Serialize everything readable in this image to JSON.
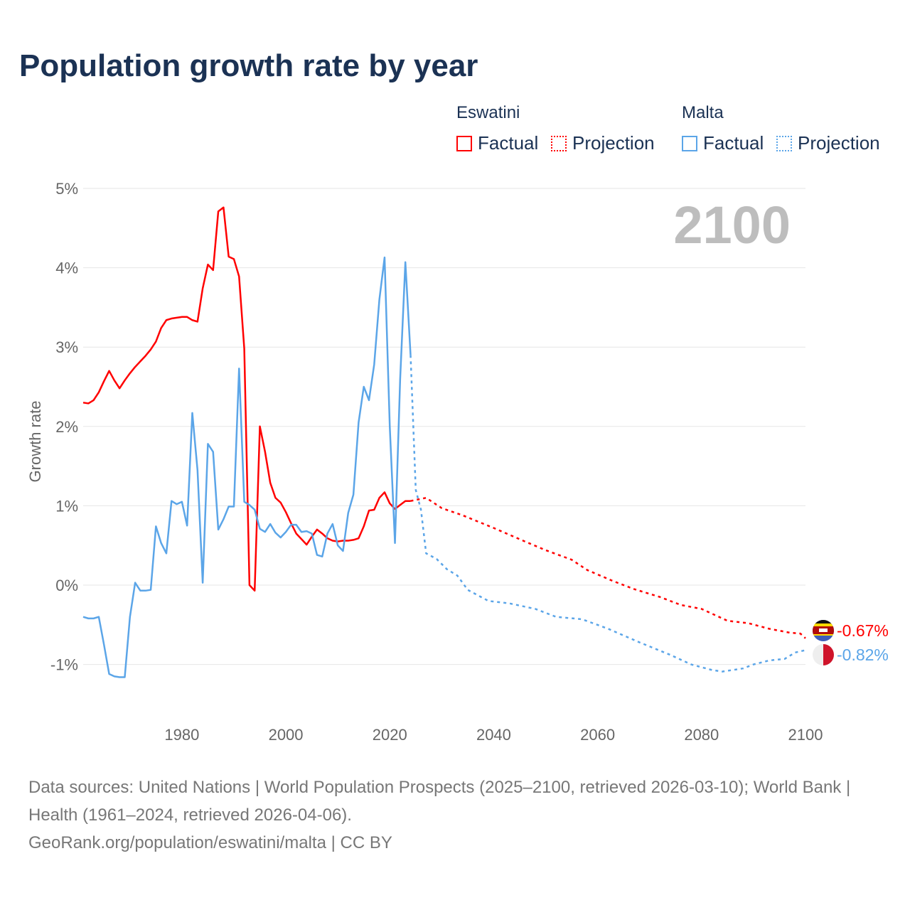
{
  "chart_data": {
    "type": "line",
    "title": "Population growth rate by year",
    "ylabel": "Growth rate",
    "xlabel": "",
    "xlim": [
      1961,
      2100
    ],
    "ylim": [
      -1.6,
      5.2
    ],
    "x_ticks": [
      1980,
      2000,
      2020,
      2040,
      2060,
      2080,
      2100
    ],
    "x_tick_labels": [
      "1980",
      "2000",
      "2020",
      "2040",
      "2060",
      "2080",
      "2100"
    ],
    "y_ticks": [
      5,
      4,
      3,
      2,
      1,
      0,
      -1
    ],
    "y_tick_labels": [
      "5%",
      "4%",
      "3%",
      "2%",
      "1%",
      "0%",
      "-1%"
    ],
    "grid": true,
    "year_marker": "2100",
    "legend": {
      "placement": "top-right",
      "groups": [
        {
          "name": "Eswatini",
          "factual": "Factual",
          "projection": "Projection",
          "color": "#ff0000"
        },
        {
          "name": "Malta",
          "factual": "Factual",
          "projection": "Projection",
          "color": "#5ba5e8"
        }
      ]
    },
    "series": [
      {
        "name": "Eswatini",
        "kind": "factual",
        "color": "#ff0000",
        "x": [
          1961,
          1962,
          1963,
          1964,
          1965,
          1966,
          1967,
          1968,
          1969,
          1970,
          1971,
          1972,
          1973,
          1974,
          1975,
          1976,
          1977,
          1978,
          1979,
          1980,
          1981,
          1982,
          1983,
          1984,
          1985,
          1986,
          1987,
          1988,
          1989,
          1990,
          1991,
          1992,
          1993,
          1994,
          1995,
          1996,
          1997,
          1998,
          1999,
          2000,
          2001,
          2002,
          2003,
          2004,
          2005,
          2006,
          2007,
          2008,
          2009,
          2010,
          2011,
          2012,
          2013,
          2014,
          2015,
          2016,
          2017,
          2018,
          2019,
          2020,
          2021,
          2022,
          2023,
          2024
        ],
        "y": [
          2.3,
          2.29,
          2.33,
          2.43,
          2.57,
          2.7,
          2.58,
          2.48,
          2.58,
          2.67,
          2.75,
          2.82,
          2.89,
          2.97,
          3.07,
          3.24,
          3.34,
          3.36,
          3.37,
          3.38,
          3.38,
          3.34,
          3.32,
          3.74,
          4.04,
          3.97,
          4.71,
          4.76,
          4.14,
          4.11,
          3.89,
          2.98,
          0.0,
          -0.07,
          2.0,
          1.68,
          1.29,
          1.1,
          1.04,
          0.92,
          0.78,
          0.65,
          0.58,
          0.51,
          0.61,
          0.7,
          0.65,
          0.59,
          0.56,
          0.55,
          0.56,
          0.56,
          0.57,
          0.59,
          0.74,
          0.94,
          0.95,
          1.1,
          1.17,
          1.03,
          0.96,
          1.01,
          1.06,
          1.06
        ]
      },
      {
        "name": "Eswatini",
        "kind": "projection",
        "color": "#ff0000",
        "x": [
          2024,
          2027,
          2030,
          2034,
          2040,
          2046,
          2050,
          2055,
          2058,
          2063,
          2067,
          2072,
          2076,
          2080,
          2085,
          2089,
          2093,
          2097,
          2099,
          2100
        ],
        "y": [
          1.06,
          1.1,
          0.97,
          0.88,
          0.72,
          0.55,
          0.44,
          0.32,
          0.19,
          0.05,
          -0.05,
          -0.15,
          -0.25,
          -0.3,
          -0.45,
          -0.48,
          -0.55,
          -0.6,
          -0.61,
          -0.67
        ]
      },
      {
        "name": "Malta",
        "kind": "factual",
        "color": "#5ba5e8",
        "x": [
          1961,
          1962,
          1963,
          1964,
          1965,
          1966,
          1967,
          1968,
          1969,
          1970,
          1971,
          1972,
          1973,
          1974,
          1975,
          1976,
          1977,
          1978,
          1979,
          1980,
          1981,
          1982,
          1983,
          1984,
          1985,
          1986,
          1987,
          1988,
          1989,
          1990,
          1991,
          1992,
          1993,
          1994,
          1995,
          1996,
          1997,
          1998,
          1999,
          2000,
          2001,
          2002,
          2003,
          2004,
          2005,
          2006,
          2007,
          2008,
          2009,
          2010,
          2011,
          2012,
          2013,
          2014,
          2015,
          2016,
          2017,
          2018,
          2019,
          2020,
          2021,
          2022,
          2023,
          2024
        ],
        "y": [
          -0.4,
          -0.42,
          -0.42,
          -0.4,
          -0.75,
          -1.12,
          -1.15,
          -1.16,
          -1.16,
          -0.4,
          0.03,
          -0.07,
          -0.07,
          -0.06,
          0.74,
          0.53,
          0.4,
          1.06,
          1.02,
          1.05,
          0.75,
          2.17,
          1.45,
          0.03,
          1.78,
          1.68,
          0.7,
          0.83,
          0.99,
          0.99,
          2.73,
          1.05,
          1.01,
          0.95,
          0.71,
          0.67,
          0.77,
          0.66,
          0.6,
          0.67,
          0.76,
          0.76,
          0.67,
          0.68,
          0.65,
          0.38,
          0.36,
          0.65,
          0.77,
          0.5,
          0.43,
          0.91,
          1.14,
          2.05,
          2.5,
          2.33,
          2.78,
          3.6,
          4.13,
          2.0,
          0.53,
          2.6,
          4.07,
          2.9
        ]
      },
      {
        "name": "Malta",
        "kind": "projection",
        "color": "#5ba5e8",
        "x": [
          2024,
          2025,
          2026,
          2027,
          2029,
          2031,
          2033,
          2035,
          2039,
          2043,
          2048,
          2052,
          2057,
          2062,
          2068,
          2074,
          2078,
          2082,
          2084,
          2088,
          2090,
          2093,
          2096,
          2098,
          2100
        ],
        "y": [
          2.9,
          1.2,
          0.95,
          0.4,
          0.33,
          0.2,
          0.12,
          -0.06,
          -0.2,
          -0.23,
          -0.3,
          -0.4,
          -0.43,
          -0.55,
          -0.72,
          -0.88,
          -1.0,
          -1.07,
          -1.09,
          -1.05,
          -1.0,
          -0.95,
          -0.93,
          -0.85,
          -0.82
        ]
      }
    ],
    "end_labels": [
      {
        "name": "Eswatini",
        "label": "-0.67%",
        "value": -0.67,
        "color": "#ff0000"
      },
      {
        "name": "Malta",
        "label": "-0.82%",
        "value": -0.82,
        "color": "#5ba5e8"
      }
    ]
  },
  "footer": {
    "sources": "Data sources: United Nations | World Population Prospects (2025–2100, retrieved 2026-03-10); World Bank | Health (1961–2024, retrieved 2026-04-06).",
    "credit": "GeoRank.org/population/eswatini/malta | CC BY"
  }
}
